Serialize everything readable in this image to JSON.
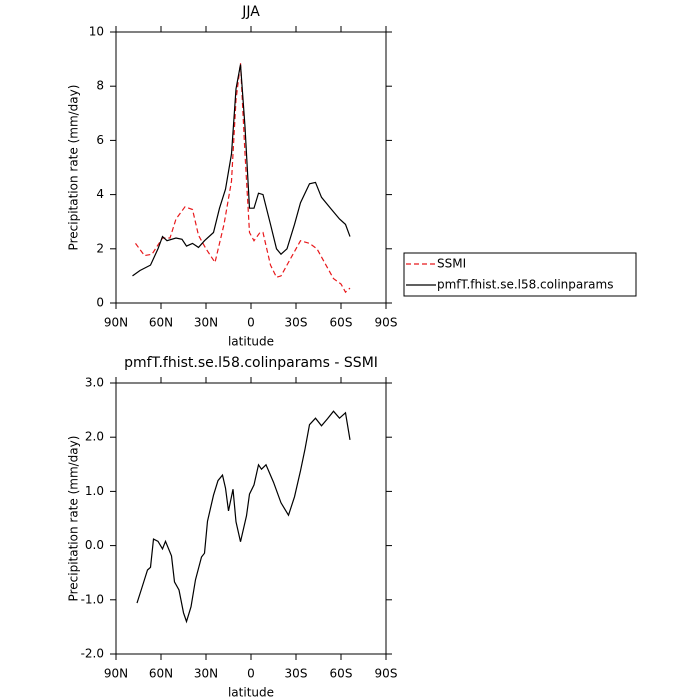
{
  "chart_data": [
    {
      "type": "line",
      "title": "JJA",
      "x_label": "latitude",
      "y_label": "Precipitation rate (mm/day)",
      "xlim": [
        90,
        -90
      ],
      "xticks": [
        {
          "value": 90,
          "label": "90N"
        },
        {
          "value": 60,
          "label": "60N"
        },
        {
          "value": 30,
          "label": "30N"
        },
        0,
        {
          "value": -30,
          "label": "30S"
        },
        {
          "value": -60,
          "label": "60S"
        },
        {
          "value": -90,
          "label": "90S"
        }
      ],
      "ylim": [
        0,
        10
      ],
      "yticks": [
        0,
        2,
        4,
        6,
        8,
        10
      ],
      "legend": "right",
      "series": [
        {
          "name": "SSMI",
          "color": "#e8191c",
          "dash": "dashed",
          "x": [
            77,
            71,
            66,
            59,
            54,
            50,
            44,
            39,
            35,
            30,
            24,
            18,
            13,
            10,
            7,
            4,
            1,
            -2,
            -6,
            -8,
            -13,
            -17,
            -20,
            -26,
            -33,
            -39,
            -44,
            -49,
            -55,
            -60,
            -63,
            -66
          ],
          "values": [
            2.2,
            1.75,
            1.8,
            2.4,
            2.4,
            3.1,
            3.55,
            3.45,
            2.5,
            2.0,
            1.5,
            2.9,
            4.5,
            7.5,
            8.85,
            5.5,
            2.6,
            2.3,
            2.6,
            2.6,
            1.4,
            0.95,
            1.0,
            1.6,
            2.3,
            2.2,
            2.0,
            1.5,
            0.9,
            0.7,
            0.4,
            0.55
          ]
        },
        {
          "name": "pmfT.fhist.se.l58.colinparams",
          "color": "#000000",
          "dash": "solid",
          "x": [
            79,
            74,
            67,
            62,
            59,
            56,
            50,
            46,
            43,
            39,
            35,
            31,
            25,
            21,
            17,
            13,
            10,
            7,
            4,
            1,
            -2,
            -5,
            -8,
            -13,
            -17,
            -20,
            -24,
            -29,
            -33,
            -39,
            -43,
            -47,
            -53,
            -59,
            -63,
            -66
          ],
          "values": [
            1.0,
            1.2,
            1.4,
            2.0,
            2.45,
            2.3,
            2.4,
            2.35,
            2.1,
            2.2,
            2.05,
            2.3,
            2.6,
            3.5,
            4.2,
            5.5,
            7.9,
            8.8,
            6.5,
            3.5,
            3.5,
            4.05,
            4.0,
            2.9,
            2.0,
            1.8,
            2.0,
            2.9,
            3.7,
            4.4,
            4.45,
            3.9,
            3.5,
            3.1,
            2.9,
            2.45
          ]
        }
      ]
    },
    {
      "type": "line",
      "title": "pmfT.fhist.se.l58.colinparams - SSMI",
      "x_label": "latitude",
      "y_label": "Precipitation rate (mm/day)",
      "xlim": [
        90,
        -90
      ],
      "xticks": [
        {
          "value": 90,
          "label": "90N"
        },
        {
          "value": 60,
          "label": "60N"
        },
        {
          "value": 30,
          "label": "30N"
        },
        0,
        {
          "value": -30,
          "label": "30S"
        },
        {
          "value": -60,
          "label": "60S"
        },
        {
          "value": -90,
          "label": "90S"
        }
      ],
      "ylim": [
        -2,
        3
      ],
      "yticks": [
        {
          "value": -2,
          "label": "-2.0"
        },
        {
          "value": -1,
          "label": "-1.0"
        },
        {
          "value": 0,
          "label": "0.0"
        },
        {
          "value": 1,
          "label": "1.0"
        },
        {
          "value": 2,
          "label": "2.0"
        },
        {
          "value": 3,
          "label": "3.0"
        }
      ],
      "series": [
        {
          "color": "#000000",
          "dash": "solid",
          "x": [
            76,
            73,
            69,
            67,
            65,
            62,
            59,
            57,
            53,
            51,
            48,
            45,
            43,
            40,
            37,
            33,
            31,
            29,
            25,
            22,
            19,
            17,
            15,
            12,
            10,
            7,
            3,
            1,
            -2,
            -5,
            -7,
            -10,
            -15,
            -20,
            -25,
            -29,
            -33,
            -36,
            -39,
            -43,
            -47,
            -51,
            -55,
            -59,
            -63,
            -66
          ],
          "values": [
            -1.06,
            -0.8,
            -0.45,
            -0.4,
            0.12,
            0.08,
            -0.06,
            0.08,
            -0.19,
            -0.67,
            -0.82,
            -1.24,
            -1.4,
            -1.13,
            -0.63,
            -0.21,
            -0.14,
            0.45,
            0.93,
            1.2,
            1.3,
            1.06,
            0.64,
            1.04,
            0.44,
            0.07,
            0.55,
            0.95,
            1.12,
            1.49,
            1.41,
            1.49,
            1.17,
            0.79,
            0.56,
            0.9,
            1.38,
            1.78,
            2.23,
            2.35,
            2.21,
            2.34,
            2.48,
            2.35,
            2.45,
            1.95
          ]
        }
      ]
    }
  ]
}
